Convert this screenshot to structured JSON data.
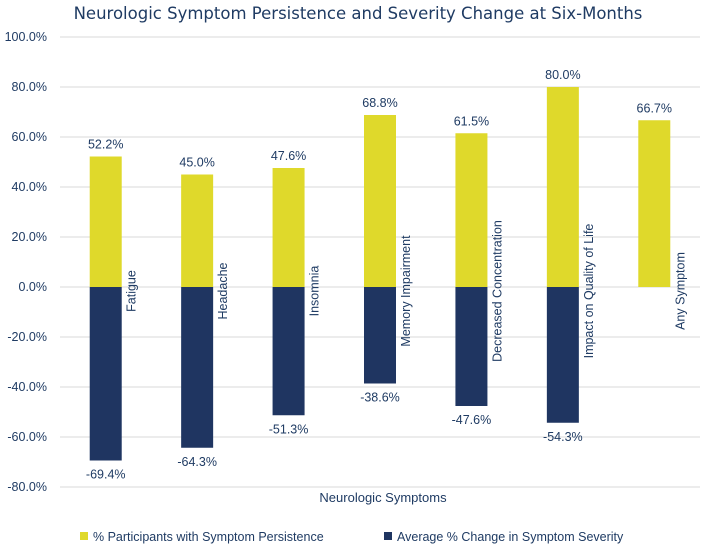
{
  "chart_data": {
    "type": "bar",
    "title": "Neurologic Symptom Persistence and Severity Change at Six-Months",
    "xlabel": "Neurologic Symptoms",
    "ylabel": "",
    "ylim": [
      -80,
      100
    ],
    "yticks": [
      100,
      80,
      60,
      40,
      20,
      0,
      -20,
      -40,
      -60,
      -80
    ],
    "ytick_labels": [
      "100.0%",
      "80.0%",
      "60.0%",
      "40.0%",
      "20.0%",
      "0.0%",
      "-20.0%",
      "-40.0%",
      "-60.0%",
      "-80.0%"
    ],
    "grid": true,
    "legend_position": "bottom",
    "categories": [
      "Fatigue",
      "Headache",
      "Insomnia",
      "Memory Impairment",
      "Decreased Concentration",
      "Impact on Quality of Life",
      "Any Symptom"
    ],
    "series": [
      {
        "name": "% Participants with Symptom Persistence",
        "color": "#dfd92b",
        "values": [
          52.2,
          45.0,
          47.6,
          68.8,
          61.5,
          80.0,
          66.7
        ],
        "labels": [
          "52.2%",
          "45.0%",
          "47.6%",
          "68.8%",
          "61.5%",
          "80.0%",
          "66.7%"
        ]
      },
      {
        "name": "Average % Change in Symptom Severity",
        "color": "#1f3561",
        "values": [
          -69.4,
          -64.3,
          -51.3,
          -38.6,
          -47.6,
          -54.3,
          null
        ],
        "labels": [
          "-69.4%",
          "-64.3%",
          "-51.3%",
          "-38.6%",
          "-47.6%",
          "-54.3%",
          ""
        ]
      }
    ]
  }
}
